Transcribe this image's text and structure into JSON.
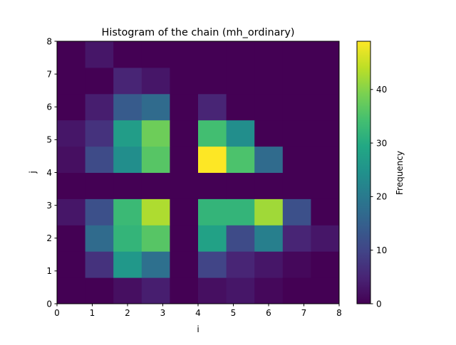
{
  "chart_data": {
    "type": "heatmap",
    "title": "Histogram of the chain (mh_ordinary)",
    "xlabel": "i",
    "ylabel": "j",
    "xlim": [
      0,
      8
    ],
    "ylim": [
      0,
      8
    ],
    "nbins": 10,
    "x_ticks": [
      "0",
      "1",
      "2",
      "3",
      "4",
      "5",
      "6",
      "7",
      "8"
    ],
    "y_ticks": [
      "0",
      "1",
      "2",
      "3",
      "4",
      "5",
      "6",
      "7",
      "8"
    ],
    "colormap": "viridis",
    "colorbar": {
      "label": "Frequency",
      "vmin": 0,
      "vmax": 49,
      "ticks": [
        "0",
        "10",
        "20",
        "30",
        "40"
      ]
    },
    "counts": [
      [
        0,
        0,
        2,
        4,
        0,
        2,
        3,
        1,
        0,
        0
      ],
      [
        0,
        7,
        26,
        18,
        0,
        10,
        5,
        3,
        1,
        0
      ],
      [
        0,
        17,
        32,
        36,
        0,
        28,
        11,
        21,
        5,
        3
      ],
      [
        3,
        12,
        33,
        43,
        0,
        32,
        32,
        42,
        12,
        0
      ],
      [
        0,
        0,
        0,
        0,
        0,
        0,
        0,
        0,
        0,
        0
      ],
      [
        2,
        11,
        24,
        36,
        0,
        49,
        35,
        17,
        0,
        0
      ],
      [
        3,
        7,
        27,
        38,
        0,
        34,
        24,
        0,
        0,
        0
      ],
      [
        0,
        4,
        14,
        17,
        0,
        5,
        0,
        0,
        0,
        0
      ],
      [
        0,
        0,
        5,
        3,
        0,
        0,
        0,
        0,
        0,
        0
      ],
      [
        0,
        3,
        0,
        0,
        0,
        0,
        0,
        0,
        0,
        0
      ]
    ]
  }
}
